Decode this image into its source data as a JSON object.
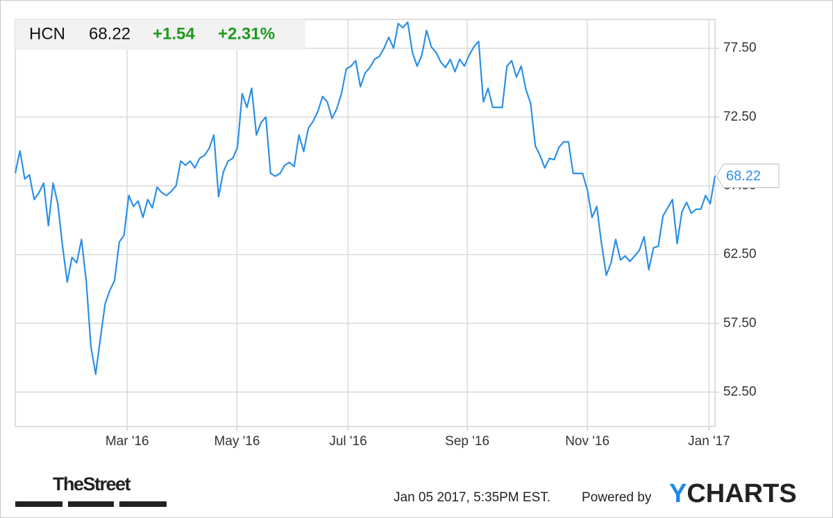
{
  "chart_data": {
    "type": "line",
    "header": {
      "symbol": "HCN",
      "price": "68.22",
      "change": "+1.54",
      "change_pct": "+2.31%"
    },
    "series": [
      {
        "color": "#2b8fe6",
        "values": [
          68.43,
          70.04,
          68.0,
          68.3,
          66.5,
          67.0,
          67.7,
          64.6,
          67.7,
          66.2,
          63.1,
          60.5,
          62.3,
          61.9,
          63.6,
          60.6,
          55.8,
          53.8,
          56.4,
          58.9,
          59.9,
          60.6,
          63.4,
          63.9,
          66.8,
          66.0,
          66.4,
          65.2,
          66.5,
          65.9,
          67.4,
          67.0,
          66.8,
          67.1,
          67.5,
          69.3,
          69.0,
          69.3,
          68.8,
          69.5,
          69.7,
          70.2,
          71.2,
          66.7,
          68.5,
          69.3,
          69.5,
          70.3,
          74.2,
          73.2,
          74.6,
          71.2,
          72.1,
          72.5,
          68.4,
          68.2,
          68.4,
          69.0,
          69.2,
          68.9,
          71.2,
          70.0,
          71.7,
          72.2,
          72.9,
          74.0,
          73.6,
          72.4,
          73.1,
          74.2,
          76.0,
          76.2,
          76.6,
          74.7,
          75.7,
          76.1,
          76.7,
          76.9,
          77.5,
          78.3,
          77.5,
          79.3,
          79.0,
          79.4,
          77.2,
          76.2,
          77.0,
          78.8,
          77.6,
          77.2,
          76.5,
          76.1,
          76.7,
          75.8,
          76.7,
          76.2,
          77.0,
          77.6,
          78.0,
          73.6,
          74.6,
          73.2,
          73.2,
          73.2,
          76.2,
          76.6,
          75.4,
          76.2,
          74.5,
          73.5,
          70.4,
          69.7,
          68.8,
          69.5,
          69.4,
          70.3,
          70.7,
          70.7,
          68.4,
          68.4,
          68.4,
          67.2,
          65.2,
          66.0,
          63.3,
          61.0,
          61.9,
          63.6,
          62.1,
          62.4,
          62.0,
          62.4,
          62.8,
          63.8,
          61.4,
          63.0,
          63.1,
          65.3,
          65.9,
          66.5,
          63.3,
          65.6,
          66.3,
          65.5,
          65.8,
          65.8,
          66.8,
          66.2,
          68.22
        ]
      }
    ],
    "xlim": [
      0,
      148
    ],
    "xticks": [
      {
        "value": 23.67,
        "label": "Mar '16"
      },
      {
        "value": 46.9,
        "label": "May '16"
      },
      {
        "value": 70.4,
        "label": "Jul '16"
      },
      {
        "value": 95.6,
        "label": "Sep '16"
      },
      {
        "value": 121,
        "label": "Nov '16"
      },
      {
        "value": 146.75,
        "label": "Jan '17"
      }
    ],
    "ylim": [
      50,
      79.6
    ],
    "yticks": [
      {
        "value": 52.5,
        "label": "52.50"
      },
      {
        "value": 57.5,
        "label": "57.50"
      },
      {
        "value": 62.5,
        "label": "62.50"
      },
      {
        "value": 67.5,
        "label": "67.50"
      },
      {
        "value": 72.5,
        "label": "72.50"
      },
      {
        "value": 77.5,
        "label": "77.50"
      }
    ],
    "grid": true
  },
  "footer": {
    "brand": "TheStreet",
    "timestamp": "Jan 05 2017, 5:35PM EST.",
    "powered": "Powered by",
    "logo_y": "Y",
    "logo_rest": "CHARTS"
  }
}
